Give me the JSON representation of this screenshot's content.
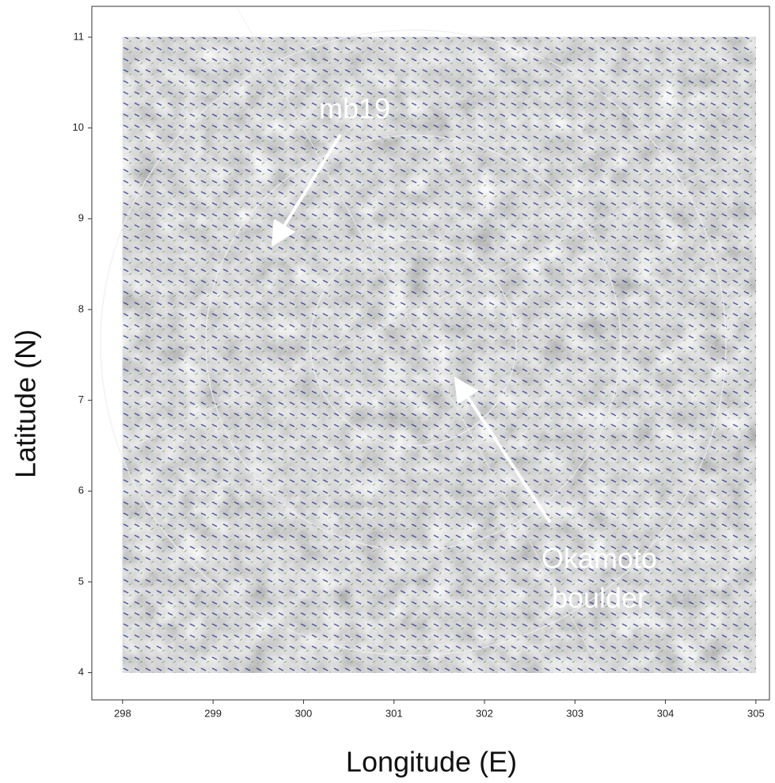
{
  "chart_data": {
    "type": "image",
    "xlabel": "Longitude (E)",
    "ylabel": "Latitude (N)",
    "xlim": [
      297.66,
      305.15
    ],
    "ylim": [
      3.7,
      11.34
    ],
    "xticks": [
      298,
      299,
      300,
      301,
      302,
      303,
      304,
      305
    ],
    "yticks": [
      4,
      5,
      6,
      7,
      8,
      9,
      10,
      11
    ],
    "annotations": [
      [
        "mb19"
      ],
      [
        "Okamoto",
        "boulder"
      ]
    ]
  }
}
